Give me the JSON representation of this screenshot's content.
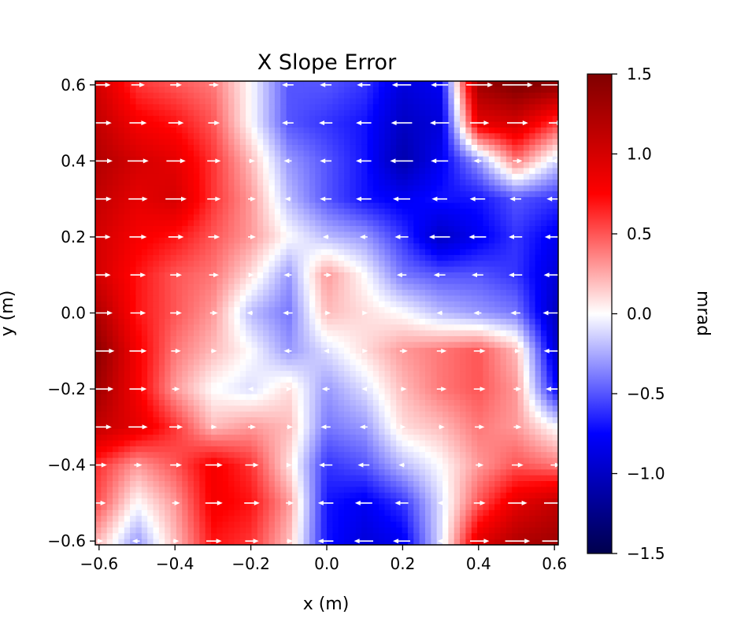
{
  "chart_data": {
    "type": "heatmap",
    "title": "X Slope Error",
    "xlabel": "x (m)",
    "ylabel": "y (m)",
    "xlim": [
      -0.61,
      0.61
    ],
    "ylim": [
      -0.61,
      0.61
    ],
    "x_ticks": [
      -0.6,
      -0.4,
      -0.2,
      0.0,
      0.2,
      0.4,
      0.6
    ],
    "x_tick_labels": [
      "−0.6",
      "−0.4",
      "−0.2",
      "0.0",
      "0.2",
      "0.4",
      "0.6"
    ],
    "y_ticks": [
      -0.6,
      -0.4,
      -0.2,
      0.0,
      0.2,
      0.4,
      0.6
    ],
    "y_tick_labels": [
      "−0.6",
      "−0.4",
      "−0.2",
      "0.0",
      "0.2",
      "0.4",
      "0.6"
    ],
    "colorbar": {
      "label": "mrad",
      "range": [
        -1.5,
        1.5
      ],
      "ticks": [
        -1.5,
        -1.0,
        -0.5,
        0.0,
        0.5,
        1.0,
        1.5
      ],
      "tick_labels": [
        "−1.5",
        "−1.0",
        "−0.5",
        "0.0",
        "0.5",
        "1.0",
        "1.5"
      ],
      "colormap": "seismic",
      "colors": [
        "#00004c",
        "#0000ff",
        "#ffffff",
        "#ff0000",
        "#800000"
      ]
    },
    "grid": {
      "x": [
        -0.6,
        -0.5,
        -0.4,
        -0.3,
        -0.2,
        -0.1,
        0.0,
        0.1,
        0.2,
        0.3,
        0.4,
        0.5,
        0.6
      ],
      "y": [
        0.6,
        0.5,
        0.4,
        0.3,
        0.2,
        0.1,
        0.0,
        -0.1,
        -0.2,
        -0.3,
        -0.4,
        -0.5,
        -0.6
      ],
      "values": [
        [
          1.0,
          0.6,
          0.5,
          0.4,
          0.0,
          -0.5,
          -0.5,
          -0.6,
          -0.9,
          -0.8,
          1.3,
          1.5,
          1.4
        ],
        [
          1.1,
          0.8,
          0.7,
          0.5,
          0.0,
          -0.5,
          -0.6,
          -0.7,
          -1.0,
          -0.9,
          0.9,
          1.0,
          0.6
        ],
        [
          1.2,
          1.0,
          0.9,
          0.6,
          0.2,
          -0.3,
          -0.5,
          -0.7,
          -1.1,
          -0.8,
          -0.3,
          0.4,
          -0.1
        ],
        [
          1.1,
          0.9,
          1.0,
          0.6,
          0.3,
          -0.2,
          -0.5,
          -0.7,
          -0.8,
          -0.7,
          -0.7,
          -0.5,
          -0.6
        ],
        [
          1.0,
          0.8,
          0.7,
          0.5,
          0.3,
          0.0,
          -0.2,
          -0.3,
          -0.6,
          -1.0,
          -0.8,
          -0.6,
          -0.8
        ],
        [
          1.0,
          0.7,
          0.5,
          0.4,
          0.1,
          -0.3,
          0.3,
          0.0,
          -0.4,
          -0.5,
          -0.5,
          -0.6,
          -0.9
        ],
        [
          1.2,
          0.7,
          0.5,
          0.3,
          -0.2,
          -0.4,
          0.2,
          0.1,
          0.0,
          -0.2,
          -0.3,
          -0.4,
          -1.0
        ],
        [
          1.4,
          0.8,
          0.4,
          0.2,
          0.0,
          -0.3,
          -0.1,
          0.1,
          0.3,
          0.4,
          0.5,
          0.2,
          -0.9
        ],
        [
          1.3,
          0.8,
          0.3,
          0.0,
          -0.1,
          0.1,
          -0.3,
          -0.1,
          0.2,
          0.4,
          0.5,
          0.3,
          -0.7
        ],
        [
          1.1,
          0.9,
          0.6,
          0.2,
          0.3,
          0.2,
          -0.4,
          -0.3,
          0.1,
          0.2,
          0.4,
          0.3,
          0.0
        ],
        [
          0.6,
          0.3,
          0.5,
          0.8,
          0.6,
          0.1,
          -0.6,
          -0.5,
          -0.2,
          0.0,
          0.3,
          0.5,
          0.4
        ],
        [
          0.5,
          0.0,
          0.3,
          0.8,
          0.7,
          0.3,
          -0.7,
          -0.8,
          -0.6,
          -0.1,
          0.5,
          0.9,
          1.1
        ],
        [
          0.2,
          -0.3,
          0.2,
          0.7,
          0.6,
          0.2,
          -0.7,
          -0.9,
          -0.8,
          -0.1,
          0.9,
          1.2,
          1.3
        ]
      ],
      "arrows_direction": "horizontal, length proportional to slope error",
      "arrow_color": "#ffffff"
    }
  }
}
